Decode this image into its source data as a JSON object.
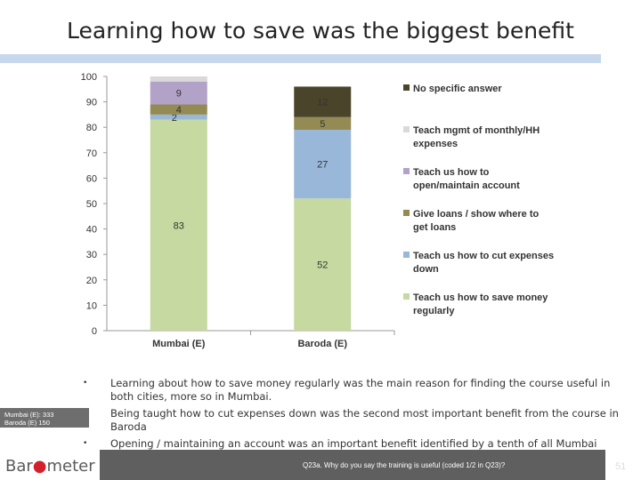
{
  "title": "Learning how to save was the biggest benefit",
  "chart_data": {
    "type": "bar",
    "stacked": true,
    "categories": [
      "Mumbai (E)",
      "Baroda (E)"
    ],
    "ylim": [
      0,
      100
    ],
    "yticks": [
      0,
      10,
      20,
      30,
      40,
      50,
      60,
      70,
      80,
      90,
      100
    ],
    "legend_position": "right",
    "series": [
      {
        "name": "Teach us how to save money regularly",
        "color": "#c6d9a0",
        "values": [
          83,
          52
        ],
        "labels": [
          "83",
          "52"
        ]
      },
      {
        "name": "Teach us how to cut expenses down",
        "color": "#99b8d9",
        "values": [
          2,
          27
        ],
        "labels": [
          "2",
          "27"
        ]
      },
      {
        "name": "Give loans / show where to get loans",
        "color": "#948a54",
        "values": [
          4,
          5
        ],
        "labels": [
          "4",
          "5"
        ]
      },
      {
        "name": "Teach us how to open/maintain account",
        "color": "#b3a2c7",
        "values": [
          9,
          0
        ],
        "labels": [
          "9",
          ""
        ]
      },
      {
        "name": "Teach mgmt of monthly/HH expenses",
        "color": "#d9d9d9",
        "values": [
          2,
          0
        ],
        "labels": [
          "",
          ""
        ]
      },
      {
        "name": "No specific answer",
        "color": "#4a452a",
        "values": [
          0,
          12
        ],
        "labels": [
          "",
          "12"
        ]
      }
    ]
  },
  "bullets": [
    "Learning about how to save money regularly was the main reason for finding the course useful in both cities, more so in Mumbai.",
    "Being taught how to cut expenses down was the second most important benefit from the course in Baroda",
    "Opening / maintaining an account was an important benefit identified by a tenth of all Mumbai respondents"
  ],
  "sample": {
    "line1": "Mumbai (E): 333",
    "line2": "Baroda (E) 150"
  },
  "logo": {
    "pre": "Bar",
    "dot": "●",
    "post": "meter"
  },
  "footnote": "Q23a. Why do you say the training is useful (coded 1/2 in Q23)?",
  "page_number": "51"
}
